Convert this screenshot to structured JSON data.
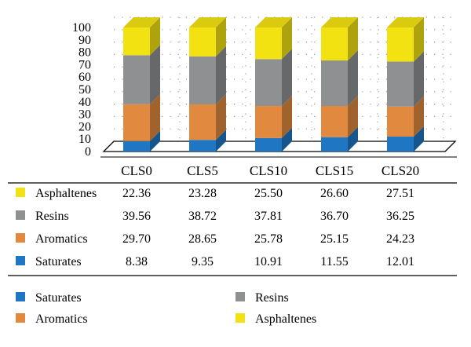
{
  "chart_data": {
    "type": "bar",
    "stacked": true,
    "three_d": true,
    "categories": [
      "CLS0",
      "CLS5",
      "CLS10",
      "CLS15",
      "CLS20"
    ],
    "ylim": [
      0,
      100
    ],
    "yticks": [
      "0",
      "10",
      "20",
      "30",
      "40",
      "50",
      "60",
      "70",
      "80",
      "90",
      "100"
    ],
    "grid": "dotted",
    "series": [
      {
        "name": "Saturates",
        "color": "#1f77c4",
        "values": [
          8.38,
          9.35,
          10.91,
          11.55,
          12.01
        ],
        "labels": [
          "8.38",
          "9.35",
          "10.91",
          "11.55",
          "12.01"
        ]
      },
      {
        "name": "Aromatics",
        "color": "#e0893f",
        "values": [
          29.7,
          28.65,
          25.78,
          25.15,
          24.23
        ],
        "labels": [
          "29.70",
          "28.65",
          "25.78",
          "25.15",
          "24.23"
        ]
      },
      {
        "name": "Resins",
        "color": "#8e9092",
        "values": [
          39.56,
          38.72,
          37.81,
          36.7,
          36.25
        ],
        "labels": [
          "39.56",
          "38.72",
          "37.81",
          "36.70",
          "36.25"
        ]
      },
      {
        "name": "Asphaltenes",
        "color": "#f2e212",
        "values": [
          22.36,
          23.28,
          25.5,
          26.6,
          27.51
        ],
        "labels": [
          "22.36",
          "23.28",
          "25.50",
          "26.60",
          "27.51"
        ]
      }
    ],
    "table_row_order": [
      "Asphaltenes",
      "Resins",
      "Aromatics",
      "Saturates"
    ],
    "legend": {
      "placement": "bottom",
      "order": [
        "Saturates",
        "Resins",
        "Aromatics",
        "Asphaltenes"
      ]
    }
  }
}
